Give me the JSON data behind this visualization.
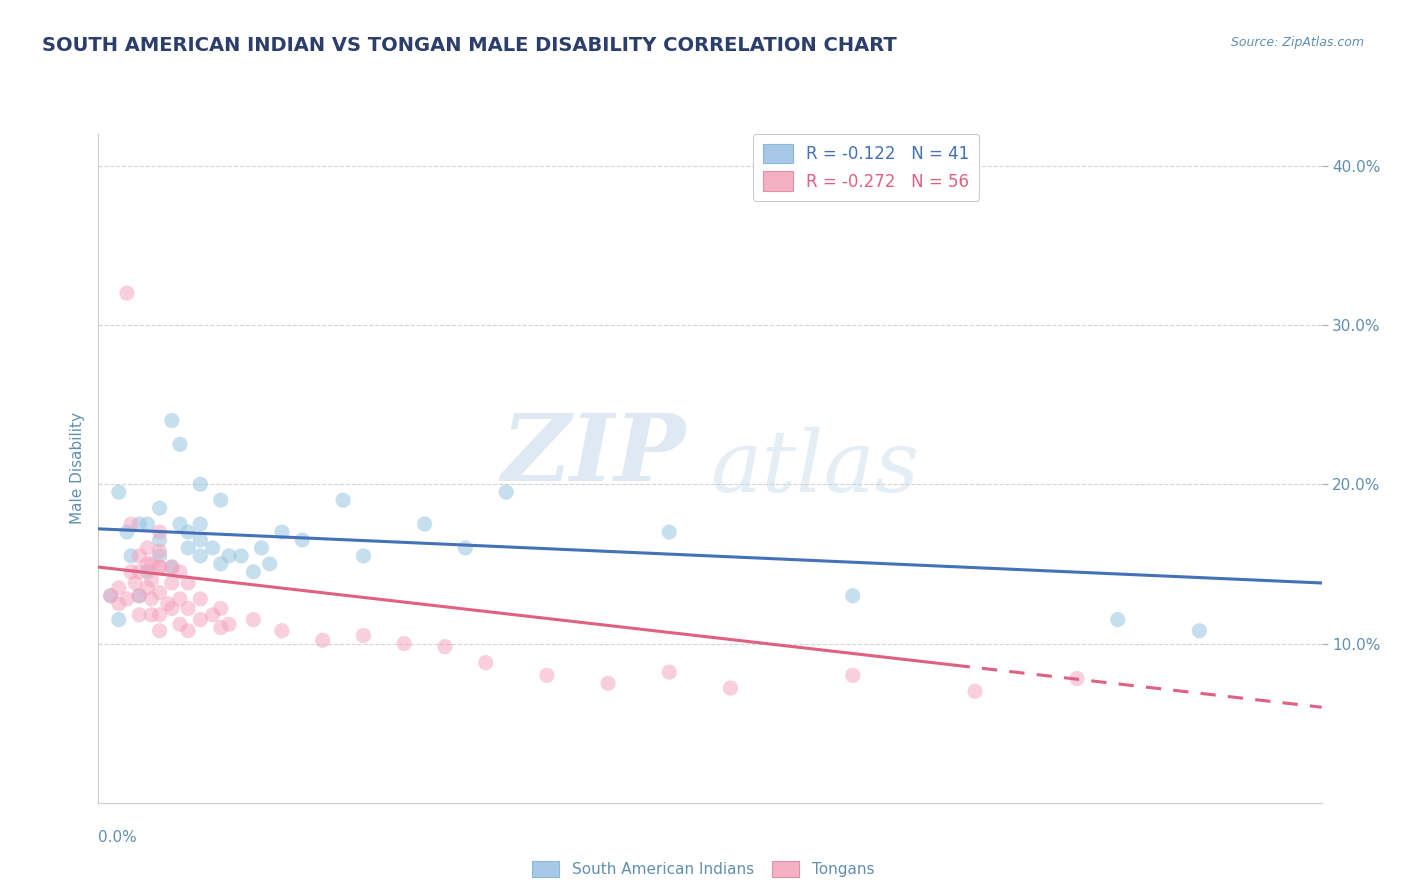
{
  "title": "SOUTH AMERICAN INDIAN VS TONGAN MALE DISABILITY CORRELATION CHART",
  "source": "Source: ZipAtlas.com",
  "ylabel": "Male Disability",
  "xmin": 0.0,
  "xmax": 0.3,
  "ymin": 0.0,
  "ymax": 0.42,
  "legend_entries": [
    {
      "label": "R = -0.122   N = 41",
      "color": "#a8c8e8"
    },
    {
      "label": "R = -0.272   N = 56",
      "color": "#f4b0c4"
    }
  ],
  "legend_labels_bottom": [
    "South American Indians",
    "Tongans"
  ],
  "blue_scatter": [
    [
      0.003,
      0.13
    ],
    [
      0.005,
      0.115
    ],
    [
      0.005,
      0.195
    ],
    [
      0.007,
      0.17
    ],
    [
      0.008,
      0.155
    ],
    [
      0.01,
      0.175
    ],
    [
      0.01,
      0.13
    ],
    [
      0.012,
      0.145
    ],
    [
      0.012,
      0.175
    ],
    [
      0.015,
      0.155
    ],
    [
      0.015,
      0.165
    ],
    [
      0.015,
      0.185
    ],
    [
      0.018,
      0.148
    ],
    [
      0.018,
      0.24
    ],
    [
      0.02,
      0.225
    ],
    [
      0.02,
      0.175
    ],
    [
      0.022,
      0.16
    ],
    [
      0.022,
      0.17
    ],
    [
      0.025,
      0.155
    ],
    [
      0.025,
      0.165
    ],
    [
      0.025,
      0.175
    ],
    [
      0.025,
      0.2
    ],
    [
      0.028,
      0.16
    ],
    [
      0.03,
      0.19
    ],
    [
      0.03,
      0.15
    ],
    [
      0.032,
      0.155
    ],
    [
      0.035,
      0.155
    ],
    [
      0.038,
      0.145
    ],
    [
      0.04,
      0.16
    ],
    [
      0.042,
      0.15
    ],
    [
      0.045,
      0.17
    ],
    [
      0.05,
      0.165
    ],
    [
      0.06,
      0.19
    ],
    [
      0.065,
      0.155
    ],
    [
      0.08,
      0.175
    ],
    [
      0.09,
      0.16
    ],
    [
      0.1,
      0.195
    ],
    [
      0.14,
      0.17
    ],
    [
      0.185,
      0.13
    ],
    [
      0.25,
      0.115
    ],
    [
      0.27,
      0.108
    ]
  ],
  "pink_scatter": [
    [
      0.003,
      0.13
    ],
    [
      0.005,
      0.135
    ],
    [
      0.005,
      0.125
    ],
    [
      0.007,
      0.128
    ],
    [
      0.007,
      0.32
    ],
    [
      0.008,
      0.175
    ],
    [
      0.008,
      0.145
    ],
    [
      0.009,
      0.138
    ],
    [
      0.01,
      0.155
    ],
    [
      0.01,
      0.145
    ],
    [
      0.01,
      0.13
    ],
    [
      0.01,
      0.118
    ],
    [
      0.012,
      0.16
    ],
    [
      0.012,
      0.15
    ],
    [
      0.012,
      0.135
    ],
    [
      0.013,
      0.15
    ],
    [
      0.013,
      0.14
    ],
    [
      0.013,
      0.128
    ],
    [
      0.013,
      0.118
    ],
    [
      0.015,
      0.158
    ],
    [
      0.015,
      0.148
    ],
    [
      0.015,
      0.17
    ],
    [
      0.015,
      0.148
    ],
    [
      0.015,
      0.132
    ],
    [
      0.015,
      0.118
    ],
    [
      0.015,
      0.108
    ],
    [
      0.017,
      0.125
    ],
    [
      0.018,
      0.148
    ],
    [
      0.018,
      0.138
    ],
    [
      0.018,
      0.122
    ],
    [
      0.02,
      0.145
    ],
    [
      0.02,
      0.128
    ],
    [
      0.02,
      0.112
    ],
    [
      0.022,
      0.138
    ],
    [
      0.022,
      0.122
    ],
    [
      0.022,
      0.108
    ],
    [
      0.025,
      0.128
    ],
    [
      0.025,
      0.115
    ],
    [
      0.028,
      0.118
    ],
    [
      0.03,
      0.122
    ],
    [
      0.03,
      0.11
    ],
    [
      0.032,
      0.112
    ],
    [
      0.038,
      0.115
    ],
    [
      0.045,
      0.108
    ],
    [
      0.055,
      0.102
    ],
    [
      0.065,
      0.105
    ],
    [
      0.075,
      0.1
    ],
    [
      0.085,
      0.098
    ],
    [
      0.095,
      0.088
    ],
    [
      0.11,
      0.08
    ],
    [
      0.125,
      0.075
    ],
    [
      0.14,
      0.082
    ],
    [
      0.155,
      0.072
    ],
    [
      0.185,
      0.08
    ],
    [
      0.215,
      0.07
    ],
    [
      0.24,
      0.078
    ]
  ],
  "blue_line": {
    "x": [
      0.0,
      0.3
    ],
    "y": [
      0.172,
      0.138
    ]
  },
  "pink_line": {
    "x": [
      0.0,
      0.3
    ],
    "y": [
      0.148,
      0.06
    ]
  },
  "pink_line_dashed_start": 0.21,
  "watermark_zip": "ZIP",
  "watermark_atlas": "atlas",
  "background_color": "#ffffff",
  "scatter_alpha": 0.5,
  "scatter_size": 120,
  "grid_color": "#c8c8c8",
  "blue_color": "#8fc0e0",
  "pink_color": "#f4a0bc",
  "blue_line_color": "#4472b8",
  "pink_line_color": "#e06080",
  "title_color": "#2c3e6b",
  "axis_label_color": "#6090b0",
  "tick_color": "#6090b0"
}
